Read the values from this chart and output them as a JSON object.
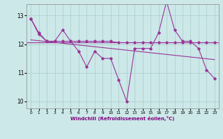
{
  "xlabel": "Windchill (Refroidissement éolien,°C)",
  "ylabel": "",
  "bg_color": "#cce8e8",
  "grid_color": "#aacccc",
  "line_color": "#993399",
  "hours": [
    0,
    1,
    2,
    3,
    4,
    5,
    6,
    7,
    8,
    9,
    10,
    11,
    12,
    13,
    14,
    15,
    16,
    17,
    18,
    19,
    20,
    21,
    22,
    23
  ],
  "line1": [
    12.9,
    12.4,
    12.1,
    12.1,
    12.5,
    12.1,
    11.75,
    11.2,
    11.75,
    11.5,
    11.5,
    10.75,
    10.0,
    11.85,
    11.85,
    11.85,
    12.4,
    13.5,
    12.5,
    12.1,
    12.1,
    11.85,
    11.1,
    10.8
  ],
  "line2": [
    12.9,
    12.35,
    12.1,
    12.1,
    12.1,
    12.1,
    12.1,
    12.1,
    12.1,
    12.1,
    12.1,
    12.05,
    12.05,
    12.05,
    12.05,
    12.05,
    12.05,
    12.05,
    12.05,
    12.05,
    12.05,
    12.05,
    12.05,
    12.05
  ],
  "line3": [
    12.15,
    12.12,
    12.09,
    12.06,
    12.03,
    12.0,
    11.97,
    11.94,
    11.91,
    11.88,
    11.85,
    11.82,
    11.79,
    11.76,
    11.73,
    11.7,
    11.67,
    11.64,
    11.61,
    11.58,
    11.55,
    11.52,
    11.49,
    11.46
  ],
  "hline": 12.05,
  "ylim": [
    9.75,
    13.4
  ],
  "xlim": [
    -0.5,
    23.5
  ],
  "yticks": [
    10,
    11,
    12,
    13
  ],
  "xticks": [
    0,
    1,
    2,
    3,
    4,
    5,
    6,
    7,
    8,
    9,
    10,
    11,
    12,
    13,
    14,
    15,
    16,
    17,
    18,
    19,
    20,
    21,
    22,
    23
  ]
}
